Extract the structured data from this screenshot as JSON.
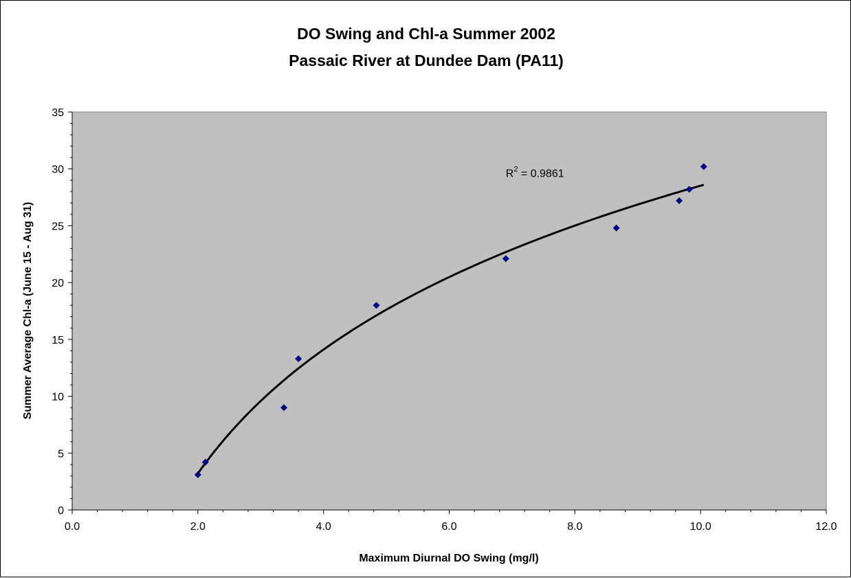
{
  "chart_data": {
    "type": "scatter",
    "title": [
      "DO Swing and Chl-a Summer 2002",
      "Passaic River at Dundee Dam (PA11)"
    ],
    "xlabel": "Maximum Diurnal DO Swing (mg/l)",
    "ylabel": "Summer Average Chl-a (June 15 - Aug 31)",
    "xlim": [
      0,
      12
    ],
    "ylim": [
      0,
      35
    ],
    "x_ticks": [
      "0.0",
      "2.0",
      "4.0",
      "6.0",
      "8.0",
      "10.0",
      "12.0"
    ],
    "y_ticks": [
      "0",
      "5",
      "10",
      "15",
      "20",
      "25",
      "30",
      "35"
    ],
    "grid": false,
    "plot_background": "#c0c0c0",
    "marker_color": "#000080",
    "trendline_color": "#000000",
    "series": [
      {
        "x": [
          2.0,
          2.12,
          3.37,
          3.6,
          4.84,
          6.9,
          8.66,
          9.66,
          9.82,
          10.05
        ],
        "y": [
          3.1,
          4.2,
          9.0,
          13.3,
          18.0,
          22.1,
          24.8,
          27.2,
          28.2,
          30.2
        ]
      }
    ],
    "trendline": {
      "type": "logarithmic",
      "coefficients": {
        "a": 15.73,
        "b": -7.7
      },
      "x_range": [
        2.0,
        10.05
      ]
    },
    "annotations": [
      {
        "text_main": "R",
        "text_sup": "2",
        "text_rest": " = 0.9861",
        "x": 6.9,
        "y": 29.3
      }
    ]
  }
}
